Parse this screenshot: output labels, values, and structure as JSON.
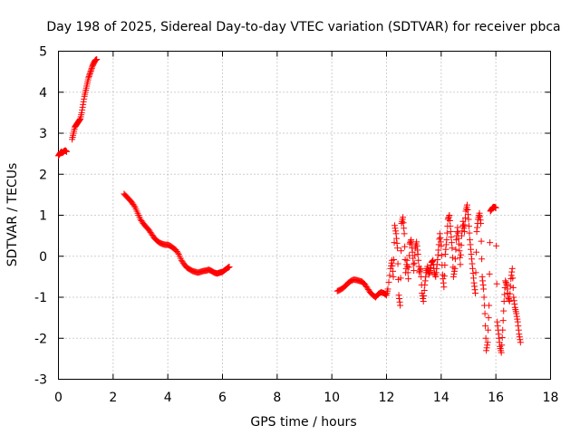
{
  "chart_data": {
    "type": "scatter",
    "title": "Day 198 of 2025, Sidereal Day-to-day VTEC variation (SDTVAR) for receiver pbca",
    "xlabel": "GPS time / hours",
    "ylabel": "SDTVAR / TECUs",
    "xlim": [
      0,
      18
    ],
    "ylim": [
      -3,
      5
    ],
    "x_ticks": [
      0,
      2,
      4,
      6,
      8,
      10,
      12,
      14,
      16,
      18
    ],
    "y_ticks": [
      -3,
      -2,
      -1,
      0,
      1,
      2,
      3,
      4,
      5
    ],
    "grid": true,
    "marker": "+",
    "color": "#ff0000",
    "series": [
      {
        "name": "SDTVAR",
        "segments": [
          [
            [
              0.0,
              2.45
            ],
            [
              0.05,
              2.5
            ],
            [
              0.1,
              2.55
            ],
            [
              0.15,
              2.52
            ],
            [
              0.2,
              2.56
            ],
            [
              0.25,
              2.58
            ],
            [
              0.3,
              2.55
            ]
          ],
          [
            [
              0.5,
              2.85
            ],
            [
              0.55,
              3.0
            ],
            [
              0.6,
              3.15
            ],
            [
              0.65,
              3.2
            ],
            [
              0.7,
              3.25
            ],
            [
              0.75,
              3.3
            ],
            [
              0.8,
              3.35
            ],
            [
              0.85,
              3.5
            ],
            [
              0.9,
              3.7
            ],
            [
              0.95,
              3.9
            ],
            [
              1.0,
              4.05
            ],
            [
              1.05,
              4.2
            ],
            [
              1.1,
              4.35
            ],
            [
              1.15,
              4.45
            ],
            [
              1.2,
              4.55
            ],
            [
              1.25,
              4.65
            ],
            [
              1.3,
              4.72
            ],
            [
              1.35,
              4.78
            ],
            [
              1.4,
              4.8
            ]
          ],
          [
            [
              2.4,
              1.52
            ],
            [
              2.5,
              1.45
            ],
            [
              2.6,
              1.38
            ],
            [
              2.7,
              1.3
            ],
            [
              2.8,
              1.2
            ],
            [
              2.9,
              1.05
            ],
            [
              3.0,
              0.9
            ],
            [
              3.1,
              0.8
            ],
            [
              3.2,
              0.72
            ],
            [
              3.3,
              0.65
            ],
            [
              3.4,
              0.55
            ],
            [
              3.5,
              0.45
            ],
            [
              3.6,
              0.38
            ],
            [
              3.7,
              0.33
            ],
            [
              3.8,
              0.3
            ],
            [
              3.9,
              0.28
            ],
            [
              4.0,
              0.28
            ],
            [
              4.1,
              0.25
            ],
            [
              4.2,
              0.2
            ],
            [
              4.3,
              0.15
            ],
            [
              4.4,
              0.05
            ],
            [
              4.5,
              -0.1
            ],
            [
              4.6,
              -0.2
            ],
            [
              4.7,
              -0.28
            ],
            [
              4.8,
              -0.32
            ],
            [
              4.9,
              -0.36
            ],
            [
              5.0,
              -0.38
            ],
            [
              5.1,
              -0.4
            ],
            [
              5.2,
              -0.38
            ],
            [
              5.3,
              -0.36
            ],
            [
              5.4,
              -0.35
            ],
            [
              5.5,
              -0.33
            ],
            [
              5.6,
              -0.36
            ],
            [
              5.7,
              -0.4
            ],
            [
              5.8,
              -0.42
            ],
            [
              5.9,
              -0.4
            ],
            [
              6.0,
              -0.38
            ],
            [
              6.1,
              -0.33
            ],
            [
              6.2,
              -0.28
            ],
            [
              6.25,
              -0.26
            ]
          ],
          [
            [
              10.2,
              -0.85
            ],
            [
              10.3,
              -0.82
            ],
            [
              10.4,
              -0.78
            ],
            [
              10.5,
              -0.72
            ],
            [
              10.6,
              -0.65
            ],
            [
              10.7,
              -0.6
            ],
            [
              10.8,
              -0.57
            ],
            [
              10.9,
              -0.58
            ],
            [
              11.0,
              -0.6
            ],
            [
              11.1,
              -0.62
            ],
            [
              11.2,
              -0.68
            ],
            [
              11.3,
              -0.78
            ],
            [
              11.4,
              -0.88
            ],
            [
              11.5,
              -0.95
            ],
            [
              11.6,
              -1.0
            ],
            [
              11.7,
              -0.92
            ],
            [
              11.8,
              -0.88
            ],
            [
              11.9,
              -0.9
            ],
            [
              12.0,
              -0.95
            ],
            [
              12.05,
              -0.8
            ],
            [
              12.15,
              -0.3
            ],
            [
              12.2,
              -0.1
            ],
            [
              12.25,
              -0.5
            ],
            [
              12.3,
              0.75
            ],
            [
              12.35,
              0.55
            ],
            [
              12.4,
              0.2
            ],
            [
              12.45,
              -0.95
            ],
            [
              12.5,
              -1.2
            ],
            [
              12.55,
              0.8
            ],
            [
              12.6,
              0.95
            ],
            [
              12.65,
              0.55
            ],
            [
              12.7,
              -0.4
            ],
            [
              12.75,
              -0.1
            ],
            [
              12.8,
              -0.55
            ],
            [
              12.85,
              0.3
            ],
            [
              12.9,
              0.4
            ],
            [
              12.95,
              0.1
            ],
            [
              13.0,
              -0.35
            ],
            [
              13.05,
              0.2
            ],
            [
              13.1,
              0.35
            ],
            [
              13.15,
              0.05
            ],
            [
              13.2,
              -0.4
            ],
            [
              13.25,
              -0.3
            ],
            [
              13.3,
              -0.9
            ],
            [
              13.35,
              -1.1
            ],
            [
              13.4,
              -0.7
            ],
            [
              13.45,
              -0.4
            ],
            [
              13.5,
              -0.25
            ],
            [
              13.55,
              -0.45
            ],
            [
              13.6,
              -0.35
            ],
            [
              13.65,
              -0.15
            ],
            [
              13.7,
              -0.1
            ],
            [
              13.75,
              -0.4
            ],
            [
              13.8,
              -0.5
            ],
            [
              13.85,
              -0.2
            ],
            [
              13.9,
              0.15
            ],
            [
              13.95,
              0.55
            ],
            [
              14.0,
              0.25
            ],
            [
              14.05,
              -0.45
            ],
            [
              14.1,
              -0.75
            ],
            [
              14.15,
              0.05
            ],
            [
              14.2,
              0.4
            ],
            [
              14.25,
              0.9
            ],
            [
              14.3,
              1.0
            ],
            [
              14.35,
              0.6
            ],
            [
              14.4,
              0.2
            ],
            [
              14.45,
              -0.5
            ],
            [
              14.5,
              -0.3
            ],
            [
              14.55,
              0.4
            ],
            [
              14.6,
              0.7
            ],
            [
              14.65,
              0.3
            ],
            [
              14.7,
              -0.2
            ],
            [
              14.75,
              0.5
            ],
            [
              14.8,
              0.85
            ],
            [
              14.85,
              0.6
            ],
            [
              14.9,
              1.1
            ],
            [
              14.95,
              1.25
            ],
            [
              15.0,
              0.9
            ],
            [
              15.05,
              0.4
            ],
            [
              15.1,
              0.05
            ],
            [
              15.15,
              -0.3
            ],
            [
              15.2,
              -0.65
            ],
            [
              15.25,
              -0.9
            ],
            [
              15.3,
              0.6
            ],
            [
              15.35,
              0.9
            ],
            [
              15.4,
              1.05
            ],
            [
              15.45,
              0.8
            ],
            [
              15.5,
              -0.5
            ],
            [
              15.55,
              -0.8
            ],
            [
              15.6,
              -1.4
            ],
            [
              15.65,
              -2.3
            ],
            [
              15.7,
              -2.1
            ],
            [
              15.75,
              -1.2
            ],
            [
              15.8,
              1.1
            ],
            [
              15.85,
              1.15
            ],
            [
              15.9,
              1.2
            ],
            [
              15.95,
              1.2
            ],
            [
              16.0,
              1.18
            ],
            [
              16.05,
              -1.6
            ],
            [
              16.1,
              -1.9
            ],
            [
              16.15,
              -2.2
            ],
            [
              16.2,
              -2.35
            ],
            [
              16.25,
              -1.8
            ],
            [
              16.3,
              -1.1
            ],
            [
              16.35,
              -0.6
            ],
            [
              16.4,
              -0.7
            ],
            [
              16.45,
              -1.0
            ],
            [
              16.5,
              -1.1
            ],
            [
              16.55,
              -0.55
            ],
            [
              16.6,
              -0.3
            ],
            [
              16.65,
              -1.0
            ],
            [
              16.7,
              -1.25
            ],
            [
              16.75,
              -1.4
            ],
            [
              16.8,
              -1.6
            ],
            [
              16.85,
              -1.9
            ],
            [
              16.9,
              -2.1
            ]
          ]
        ]
      }
    ]
  }
}
